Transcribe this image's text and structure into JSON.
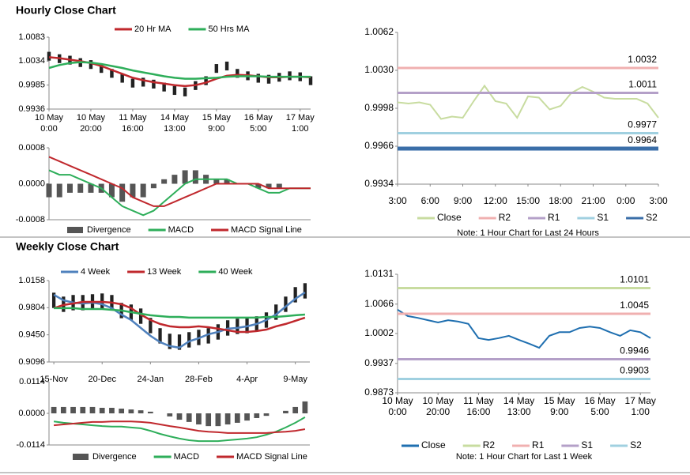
{
  "sections": [
    {
      "title": "Hourly Close Chart"
    },
    {
      "title": "Weekly Close Chart"
    }
  ],
  "chart_data": [
    {
      "type": "candlestick",
      "legend": "top",
      "x": [
        0,
        5,
        10,
        15,
        20,
        25,
        30,
        35,
        40,
        45,
        50,
        55,
        60,
        65,
        70,
        75,
        80,
        85,
        90,
        95,
        100,
        105,
        110,
        115,
        120,
        125
      ],
      "xlim": [
        0,
        125
      ],
      "xticks": [
        {
          "value": 0,
          "label": [
            "10 May",
            "0:00"
          ]
        },
        {
          "value": 20,
          "label": [
            "10 May",
            "20:00"
          ]
        },
        {
          "value": 40,
          "label": [
            "11 May",
            "16:00"
          ]
        },
        {
          "value": 60,
          "label": [
            "14 May",
            "13:00"
          ]
        },
        {
          "value": 80,
          "label": [
            "15 May",
            "9:00"
          ]
        },
        {
          "value": 100,
          "label": [
            "16 May",
            "5:00"
          ]
        },
        {
          "value": 120,
          "label": [
            "17 May",
            "1:00"
          ]
        }
      ],
      "ylim": [
        0.9936,
        1.0083
      ],
      "yticks": [
        1.0083,
        1.0034,
        0.9985,
        0.9936
      ],
      "candles": {
        "color": "#222222",
        "high": [
          1.0053,
          1.0048,
          1.0045,
          1.004,
          1.0036,
          1.0028,
          1.0018,
          1.0008,
          0.9998,
          1.0,
          0.9996,
          0.999,
          0.9983,
          0.998,
          0.9993,
          1.0003,
          1.0028,
          1.0033,
          1.0018,
          1.0013,
          1.0008,
          1.0006,
          1.001,
          1.0013,
          1.0011,
          1.0003
        ],
        "low": [
          1.0035,
          1.003,
          1.0027,
          1.0022,
          1.0018,
          1.001,
          1.0,
          0.999,
          0.998,
          0.9982,
          0.9978,
          0.9972,
          0.9965,
          0.9962,
          0.9975,
          0.9985,
          1.001,
          1.0015,
          1.0,
          0.9995,
          0.999,
          0.9988,
          0.9992,
          0.9995,
          0.9993,
          0.9985
        ]
      },
      "series": [
        {
          "name": "20 Hr MA",
          "color": "#c0282d",
          "values": [
            1.0042,
            1.004,
            1.0037,
            1.0034,
            1.003,
            1.0024,
            1.0016,
            1.0008,
            1.0,
            0.9995,
            0.9991,
            0.9988,
            0.9985,
            0.9983,
            0.9985,
            0.999,
            0.9998,
            1.0004,
            1.0006,
            1.0005,
            1.0003,
            1.0001,
            1.0001,
            1.0002,
            1.0002,
            1.0001
          ]
        },
        {
          "name": "50 Hrs MA",
          "color": "#2eae5a",
          "values": [
            1.002,
            1.0026,
            1.003,
            1.0032,
            1.0031,
            1.0028,
            1.0024,
            1.002,
            1.0015,
            1.0011,
            1.0007,
            1.0003,
            1.0,
            0.9998,
            0.9998,
            0.9999,
            1.0,
            1.0002,
            1.0003,
            1.0003,
            1.0003,
            1.0002,
            1.0002,
            1.0002,
            1.0002,
            1.0002
          ]
        }
      ]
    },
    {
      "type": "macd",
      "legend": "bottom",
      "x": [
        0,
        5,
        10,
        15,
        20,
        25,
        30,
        35,
        40,
        45,
        50,
        55,
        60,
        65,
        70,
        75,
        80,
        85,
        90,
        95,
        100,
        105,
        110,
        115,
        120,
        125
      ],
      "xlim": [
        0,
        125
      ],
      "ylim": [
        -0.0008,
        0.0008
      ],
      "yticks": [
        0.0008,
        {
          "value": 0,
          "label": "0.0000"
        },
        -0.0008
      ],
      "series": [
        {
          "name": "Divergence",
          "kind": "bar",
          "color": "#555555",
          "values": [
            -0.0003,
            -0.0003,
            -0.0002,
            -0.0002,
            -0.0002,
            -0.0002,
            -0.0003,
            -0.0004,
            -0.0003,
            -0.0003,
            -0.0001,
            0.0001,
            0.0002,
            0.0003,
            0.0003,
            0.0002,
            0.0001,
            0.0001,
            0,
            0,
            -0.0001,
            -0.0001,
            -0.0001,
            0,
            0,
            0
          ]
        },
        {
          "name": "MACD",
          "kind": "line",
          "color": "#2eae5a",
          "values": [
            0.0003,
            0.0002,
            0.0002,
            0.0001,
            0,
            -0.0001,
            -0.0003,
            -0.0005,
            -0.0006,
            -0.0007,
            -0.0006,
            -0.0004,
            -0.0002,
            0,
            0.0001,
            0.0001,
            0.0001,
            0.0001,
            0,
            0,
            -0.0001,
            -0.0002,
            -0.0002,
            -0.0001,
            -0.0001,
            -0.0001
          ]
        },
        {
          "name": "MACD Signal Line",
          "kind": "line",
          "color": "#c0282d",
          "values": [
            0.0006,
            0.0005,
            0.0004,
            0.0003,
            0.0002,
            0.0001,
            0,
            -0.0001,
            -0.0003,
            -0.0004,
            -0.0005,
            -0.0005,
            -0.0004,
            -0.0003,
            -0.0002,
            -0.0001,
            0,
            0,
            0,
            0,
            0,
            -0.0001,
            -0.0001,
            -0.0001,
            -0.0001,
            -0.0001
          ]
        }
      ]
    },
    {
      "type": "levels",
      "legend": "bottom",
      "note": "Note: 1 Hour Chart for Last 24 Hours",
      "x": [
        0,
        1,
        2,
        3,
        4,
        5,
        6,
        7,
        8,
        9,
        10,
        11,
        12,
        13,
        14,
        15,
        16,
        17,
        18,
        19,
        20,
        21,
        22,
        23,
        24
      ],
      "xlim": [
        0,
        24
      ],
      "xticks": [
        {
          "value": 0,
          "label": "3:00"
        },
        {
          "value": 3,
          "label": "6:00"
        },
        {
          "value": 6,
          "label": "9:00"
        },
        {
          "value": 9,
          "label": "12:00"
        },
        {
          "value": 12,
          "label": "15:00"
        },
        {
          "value": 15,
          "label": "18:00"
        },
        {
          "value": 18,
          "label": "21:00"
        },
        {
          "value": 21,
          "label": "0:00"
        },
        {
          "value": 24,
          "label": "3:00"
        }
      ],
      "ylim": [
        0.9934,
        1.0062
      ],
      "yticks": [
        1.0062,
        {
          "value": 1.003,
          "label": "1.0030"
        },
        0.9998,
        0.9966,
        0.9934
      ],
      "series": [
        {
          "name": "Close",
          "color": "#c8dca0",
          "values": [
            1.0003,
            1.0002,
            1.0003,
            1.0001,
            0.9989,
            0.9991,
            0.999,
            1.0004,
            1.0017,
            1.0004,
            1.0002,
            0.999,
            1.0008,
            1.0007,
            0.9997,
            1.0,
            1.0011,
            1.0016,
            1.0012,
            1.0007,
            1.0006,
            1.0006,
            1.0006,
            1.0002,
            0.999
          ]
        },
        {
          "name": "R2",
          "color": "#f0b0b0",
          "value": 1.0032
        },
        {
          "name": "R1",
          "color": "#b4a0c8",
          "value": 1.0011
        },
        {
          "name": "S1",
          "color": "#a0d0e0",
          "value": 0.9977
        },
        {
          "name": "S2",
          "color": "#3a6ea8",
          "value": 0.9964
        }
      ]
    },
    {
      "type": "candlestick",
      "legend": "top",
      "x": [
        0,
        1,
        2,
        3,
        4,
        5,
        6,
        7,
        8,
        9,
        10,
        11,
        12,
        13,
        14,
        15,
        16,
        17,
        18,
        19,
        20,
        21,
        22,
        23,
        24,
        25,
        26
      ],
      "xlim": [
        -0.5,
        26.5
      ],
      "xticks": [
        {
          "value": 0,
          "label": "15-Nov"
        },
        {
          "value": 5,
          "label": "20-Dec"
        },
        {
          "value": 10,
          "label": "24-Jan"
        },
        {
          "value": 15,
          "label": "28-Feb"
        },
        {
          "value": 20,
          "label": "4-Apr"
        },
        {
          "value": 25,
          "label": "9-May"
        }
      ],
      "ylim": [
        0.9096,
        1.0158
      ],
      "yticks": [
        1.0158,
        0.9804,
        {
          "value": 0.945,
          "label": "0.9450"
        },
        0.9096
      ],
      "candles": {
        "color": "#222222",
        "high": [
          1.0,
          0.9949,
          0.997,
          0.997,
          0.998,
          0.999,
          0.997,
          0.9867,
          0.9846,
          0.9794,
          0.9671,
          0.9537,
          0.9465,
          0.9455,
          0.9485,
          0.9516,
          0.9537,
          0.9588,
          0.964,
          0.9661,
          0.9671,
          0.9692,
          0.9743,
          0.9846,
          0.9949,
          1.0073,
          1.0124
        ],
        "low": [
          0.98,
          0.9749,
          0.977,
          0.977,
          0.978,
          0.979,
          0.977,
          0.9667,
          0.9646,
          0.9594,
          0.9471,
          0.9337,
          0.9265,
          0.9255,
          0.9285,
          0.9316,
          0.9337,
          0.9388,
          0.944,
          0.9461,
          0.9471,
          0.9492,
          0.9543,
          0.9646,
          0.9749,
          0.9873,
          0.9924
        ]
      },
      "series": [
        {
          "name": "4 Week",
          "color": "#4f81bd",
          "values": [
            0.9973,
            0.99,
            0.987,
            0.9859,
            0.987,
            0.9849,
            0.9798,
            0.9715,
            0.9643,
            0.954,
            0.9437,
            0.9355,
            0.9303,
            0.9283,
            0.9365,
            0.9406,
            0.9458,
            0.9488,
            0.953,
            0.954,
            0.9561,
            0.9592,
            0.9643,
            0.9715,
            0.9818,
            0.9921,
            1.0003
          ]
        },
        {
          "name": "13 Week",
          "color": "#c0282d",
          "values": [
            0.9798,
            0.9839,
            0.9859,
            0.988,
            0.988,
            0.988,
            0.987,
            0.9849,
            0.9798,
            0.9715,
            0.9643,
            0.9592,
            0.9561,
            0.955,
            0.955,
            0.9561,
            0.955,
            0.953,
            0.9509,
            0.9488,
            0.9488,
            0.9499,
            0.9519,
            0.9561,
            0.9592,
            0.9633,
            0.9674
          ]
        },
        {
          "name": "40 Week",
          "color": "#2eae5a",
          "values": [
            0.9798,
            0.9798,
            0.9798,
            0.9787,
            0.9787,
            0.9787,
            0.9777,
            0.9767,
            0.9746,
            0.9725,
            0.9705,
            0.9694,
            0.9684,
            0.9684,
            0.9674,
            0.9674,
            0.9674,
            0.9674,
            0.9674,
            0.9674,
            0.9674,
            0.9674,
            0.9684,
            0.9684,
            0.9694,
            0.9705,
            0.9715
          ]
        }
      ]
    },
    {
      "type": "macd",
      "legend": "bottom",
      "x": [
        0,
        1,
        2,
        3,
        4,
        5,
        6,
        7,
        8,
        9,
        10,
        11,
        12,
        13,
        14,
        15,
        16,
        17,
        18,
        19,
        20,
        21,
        22,
        23,
        24,
        25,
        26
      ],
      "xlim": [
        -0.5,
        26.5
      ],
      "ylim": [
        -0.0114,
        0.0114
      ],
      "yticks": [
        0.0114,
        {
          "value": 0,
          "label": "0.0000"
        },
        -0.0114
      ],
      "series": [
        {
          "name": "Divergence",
          "kind": "bar",
          "color": "#555555",
          "values": [
            0.0023,
            0.0023,
            0.0023,
            0.0023,
            0.0023,
            0.002,
            0.002,
            0.0017,
            0.0014,
            0.0011,
            0.0006,
            0,
            -0.0011,
            -0.0023,
            -0.0031,
            -0.004,
            -0.0046,
            -0.0046,
            -0.004,
            -0.0034,
            -0.0026,
            -0.0017,
            -0.0009,
            0,
            0.0009,
            0.0023,
            0.0043
          ]
        },
        {
          "name": "MACD",
          "kind": "line",
          "color": "#2eae5a",
          "values": [
            -0.0029,
            -0.0034,
            -0.0037,
            -0.004,
            -0.0043,
            -0.0046,
            -0.0048,
            -0.0048,
            -0.0051,
            -0.0054,
            -0.0063,
            -0.0074,
            -0.0083,
            -0.0091,
            -0.0097,
            -0.01,
            -0.01,
            -0.01,
            -0.0097,
            -0.0094,
            -0.0091,
            -0.0086,
            -0.0077,
            -0.0066,
            -0.0051,
            -0.0034,
            -0.0014
          ]
        },
        {
          "name": "MACD Signal Line",
          "kind": "line",
          "color": "#c0282d",
          "values": [
            -0.0043,
            -0.004,
            -0.0037,
            -0.0034,
            -0.0031,
            -0.0031,
            -0.0029,
            -0.0029,
            -0.0029,
            -0.0031,
            -0.0034,
            -0.004,
            -0.0046,
            -0.0051,
            -0.0057,
            -0.0063,
            -0.0066,
            -0.0068,
            -0.0071,
            -0.0071,
            -0.0071,
            -0.0071,
            -0.0071,
            -0.0068,
            -0.0066,
            -0.0063,
            -0.0057
          ]
        }
      ]
    },
    {
      "type": "levels",
      "legend": "bottom",
      "note": "Note: 1 Hour Chart for Last 1 Week",
      "x": [
        0,
        5,
        10,
        15,
        20,
        25,
        30,
        35,
        40,
        45,
        50,
        55,
        60,
        65,
        70,
        75,
        80,
        85,
        90,
        95,
        100,
        105,
        110,
        115,
        120,
        125
      ],
      "xlim": [
        0,
        125
      ],
      "xticks": [
        {
          "value": 0,
          "label": [
            "10 May",
            "0:00"
          ]
        },
        {
          "value": 20,
          "label": [
            "10 May",
            "20:00"
          ]
        },
        {
          "value": 40,
          "label": [
            "11 May",
            "16:00"
          ]
        },
        {
          "value": 60,
          "label": [
            "14 May",
            "13:00"
          ]
        },
        {
          "value": 80,
          "label": [
            "15 May",
            "9:00"
          ]
        },
        {
          "value": 100,
          "label": [
            "16 May",
            "5:00"
          ]
        },
        {
          "value": 120,
          "label": [
            "17 May",
            "1:00"
          ]
        }
      ],
      "ylim": [
        0.9873,
        1.0131
      ],
      "yticks": [
        1.0131,
        1.0066,
        1.0002,
        0.9937,
        0.9873
      ],
      "series": [
        {
          "name": "Close",
          "color": "#1f6fb0",
          "values": [
            1.0054,
            1.004,
            1.0036,
            1.0031,
            1.0026,
            1.0031,
            1.0028,
            1.0023,
            0.9992,
            0.9988,
            0.9992,
            0.9997,
            0.9988,
            0.998,
            0.9971,
            0.9997,
            1.0005,
            1.0005,
            1.0014,
            1.0017,
            1.0014,
            1.0005,
            0.9997,
            1.0009,
            1.0005,
            0.9992
          ]
        },
        {
          "name": "R2",
          "color": "#c8dca0",
          "value": 1.0101
        },
        {
          "name": "R1",
          "color": "#f0b0b0",
          "value": 1.0045
        },
        {
          "name": "S1",
          "color": "#b4a0c8",
          "value": 0.9946
        },
        {
          "name": "S2",
          "color": "#a0d0e0",
          "value": 0.9903
        }
      ]
    }
  ]
}
